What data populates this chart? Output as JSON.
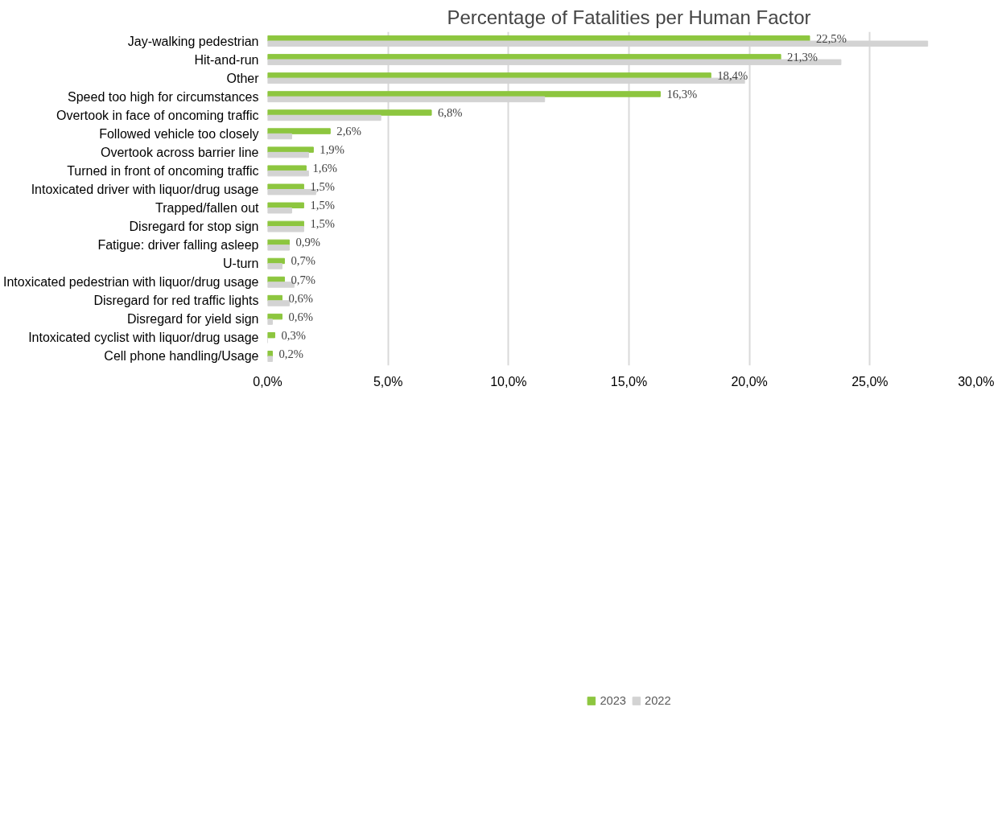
{
  "chart_data": {
    "type": "bar",
    "orientation": "horizontal",
    "title": "Percentage of Fatalities per Human Factor",
    "categories": [
      "Jay-walking pedestrian",
      "Hit-and-run",
      "Other",
      "Speed too high for circumstances",
      "Overtook in face of oncoming traffic",
      "Followed vehicle too closely",
      "Overtook across barrier line",
      "Turned in front of oncoming traffic",
      "Intoxicated driver with liquor/drug usage",
      "Trapped/fallen out",
      "Disregard for stop sign",
      "Fatigue: driver falling asleep",
      "U-turn",
      "Intoxicated pedestrian with liquor/drug usage",
      "Disregard for red traffic lights",
      "Disregard for yield sign",
      "Intoxicated cyclist with liquor/drug usage",
      "Cell phone handling/Usage"
    ],
    "series": [
      {
        "name": "2023",
        "color": "#8dc63f",
        "values": [
          22.5,
          21.3,
          18.4,
          16.3,
          6.8,
          2.6,
          1.9,
          1.6,
          1.5,
          1.5,
          1.5,
          0.9,
          0.7,
          0.7,
          0.6,
          0.6,
          0.3,
          0.2
        ],
        "value_labels": [
          "22,5%",
          "21,3%",
          "18,4%",
          "16,3%",
          "6,8%",
          "2,6%",
          "1,9%",
          "1,6%",
          "1,5%",
          "1,5%",
          "1,5%",
          "0,9%",
          "0,7%",
          "0,7%",
          "0,6%",
          "0,6%",
          "0,3%",
          "0,2%"
        ]
      },
      {
        "name": "2022",
        "color": "#d3d3d3",
        "values": [
          27.4,
          23.8,
          19.8,
          11.5,
          4.7,
          1.0,
          1.7,
          1.7,
          2.0,
          1.0,
          1.5,
          0.9,
          0.6,
          1.1,
          0.9,
          0.2,
          0.0,
          0.2
        ]
      }
    ],
    "xlim": [
      0,
      30
    ],
    "xticks": [
      {
        "value": 0,
        "label": "0,0%"
      },
      {
        "value": 5,
        "label": "5,0%"
      },
      {
        "value": 10,
        "label": "10,0%"
      },
      {
        "value": 15,
        "label": "15,0%"
      },
      {
        "value": 20,
        "label": "20,0%"
      },
      {
        "value": 25,
        "label": "25,0%"
      },
      {
        "value": 30,
        "label": "30,0%"
      }
    ],
    "grid": "x",
    "legend": "bottom"
  }
}
